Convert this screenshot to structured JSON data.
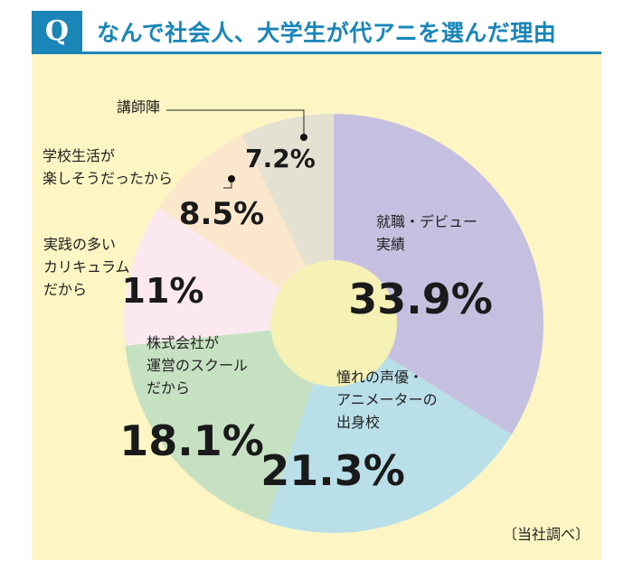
{
  "header": {
    "q_label": "Q",
    "title": "なんで社会人、大学生が代アニを選んだ理由"
  },
  "source_note": "〔当社調べ〕",
  "colors": {
    "accent": "#1a86b8",
    "background": "#fdf6c4",
    "center_hole": "#f6f1b4"
  },
  "chart_data": {
    "type": "pie",
    "title": "なんで社会人、大学生が代アニを選んだ理由",
    "unit": "%",
    "slices": [
      {
        "label": [
          "就職・デビュー",
          "実績"
        ],
        "value": 33.9,
        "value_label": "33.9%",
        "color": "#c6c0e0"
      },
      {
        "label": [
          "憧れの声優・",
          "アニメーターの",
          "出身校"
        ],
        "value": 21.3,
        "value_label": "21.3%",
        "color": "#b9dfe9"
      },
      {
        "label": [
          "株式会社が",
          "運営のスクール",
          "だから"
        ],
        "value": 18.1,
        "value_label": "18.1%",
        "color": "#c6e1c2"
      },
      {
        "label": [
          "実践の多い",
          "カリキュラム",
          "だから"
        ],
        "value": 11,
        "value_label": "11%",
        "color": "#fbe9ef"
      },
      {
        "label": [
          "学校生活が",
          "楽しそうだったから"
        ],
        "value": 8.5,
        "value_label": "8.5%",
        "color": "#fbe7cc"
      },
      {
        "label": [
          "講師陣"
        ],
        "value": 7.2,
        "value_label": "7.2%",
        "color": "#e4e1d2"
      }
    ]
  }
}
